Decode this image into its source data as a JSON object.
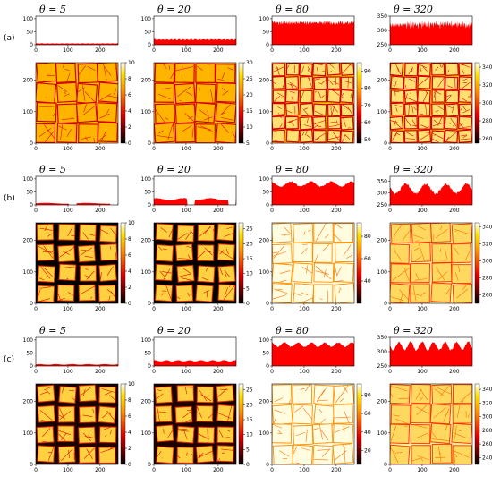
{
  "figure": {
    "rows": [
      {
        "label": "(a)",
        "panels": [
          {
            "title": "θ = 5",
            "prof_ylim": [
              0,
              110
            ],
            "prof_yticks": [
              0,
              50,
              100
            ],
            "level": 5,
            "amp": 1,
            "freq": 8,
            "cbar_ticks": [
              0,
              2,
              4,
              6,
              8,
              10
            ],
            "cbar_range": [
              0,
              10
            ],
            "style": "a"
          },
          {
            "title": "θ = 20",
            "prof_ylim": [
              0,
              110
            ],
            "prof_yticks": [
              0,
              50,
              100
            ],
            "level": 20,
            "amp": 3,
            "freq": 10,
            "cbar_ticks": [
              5,
              10,
              15,
              20,
              25,
              30
            ],
            "cbar_range": [
              5,
              30
            ],
            "style": "a"
          },
          {
            "title": "θ = 80",
            "prof_ylim": [
              0,
              110
            ],
            "prof_yticks": [
              0,
              50,
              100
            ],
            "level": 85,
            "amp": 10,
            "freq": 22,
            "cbar_ticks": [
              50,
              60,
              70,
              80,
              90
            ],
            "cbar_range": [
              48,
              95
            ],
            "style": "a"
          },
          {
            "title": "θ = 320",
            "prof_ylim": [
              250,
              350
            ],
            "prof_yticks": [
              250,
              300,
              350
            ],
            "level": 320,
            "amp": 18,
            "freq": 24,
            "cbar_ticks": [
              260,
              280,
              300,
              320,
              340
            ],
            "cbar_range": [
              255,
              345
            ],
            "style": "a"
          }
        ]
      },
      {
        "label": "(b)",
        "panels": [
          {
            "title": "θ = 5",
            "prof_ylim": [
              0,
              110
            ],
            "prof_yticks": [
              0,
              50,
              100
            ],
            "level": 6,
            "amp": 2,
            "freq": 2,
            "cbar_ticks": [
              0,
              2,
              4,
              6,
              8,
              10
            ],
            "cbar_range": [
              0,
              10
            ],
            "style": "b"
          },
          {
            "title": "θ = 20",
            "prof_ylim": [
              0,
              110
            ],
            "prof_yticks": [
              0,
              50,
              100
            ],
            "level": 22,
            "amp": 5,
            "freq": 3,
            "cbar_ticks": [
              0,
              5,
              10,
              15,
              20,
              25
            ],
            "cbar_range": [
              0,
              27
            ],
            "style": "b"
          },
          {
            "title": "θ = 80",
            "prof_ylim": [
              0,
              110
            ],
            "prof_yticks": [
              0,
              50,
              100
            ],
            "level": 80,
            "amp": 12,
            "freq": 4,
            "cbar_ticks": [
              40,
              60,
              80
            ],
            "cbar_range": [
              20,
              92
            ],
            "style": "b"
          },
          {
            "title": "θ = 320",
            "prof_ylim": [
              250,
              370
            ],
            "prof_yticks": [
              250,
              300,
              350
            ],
            "level": 318,
            "amp": 25,
            "freq": 4,
            "cbar_ticks": [
              260,
              280,
              300,
              320,
              340
            ],
            "cbar_range": [
              250,
              345
            ],
            "style": "b"
          }
        ]
      },
      {
        "label": "(c)",
        "panels": [
          {
            "title": "θ = 5",
            "prof_ylim": [
              0,
              110
            ],
            "prof_yticks": [
              0,
              50,
              100
            ],
            "level": 6,
            "amp": 1.5,
            "freq": 5,
            "cbar_ticks": [
              0,
              2,
              4,
              6,
              8,
              10
            ],
            "cbar_range": [
              0,
              10
            ],
            "style": "c"
          },
          {
            "title": "θ = 20",
            "prof_ylim": [
              0,
              110
            ],
            "prof_yticks": [
              0,
              50,
              100
            ],
            "level": 20,
            "amp": 3,
            "freq": 7,
            "cbar_ticks": [
              0,
              5,
              10,
              15,
              20,
              25
            ],
            "cbar_range": [
              0,
              27
            ],
            "style": "c"
          },
          {
            "title": "θ = 80",
            "prof_ylim": [
              0,
              110
            ],
            "prof_yticks": [
              0,
              50,
              100
            ],
            "level": 82,
            "amp": 10,
            "freq": 6,
            "cbar_ticks": [
              20,
              40,
              60,
              80
            ],
            "cbar_range": [
              5,
              92
            ],
            "style": "c"
          },
          {
            "title": "θ = 320",
            "prof_ylim": [
              250,
              350
            ],
            "prof_yticks": [
              250,
              300,
              350
            ],
            "level": 320,
            "amp": 18,
            "freq": 7,
            "cbar_ticks": [
              240,
              260,
              280,
              300,
              320,
              340
            ],
            "cbar_range": [
              230,
              348
            ],
            "style": "c"
          }
        ]
      }
    ]
  },
  "chart_data": {
    "type": "area",
    "x_ticks": [
      0,
      100,
      200
    ],
    "map_y_ticks": [
      0,
      100,
      200
    ],
    "x_range": [
      0,
      256
    ],
    "colors": {
      "profile_fill": "#ff0000",
      "map_dark": "#000000",
      "map_mid": "#ff2000",
      "map_light": "#ffffff"
    }
  }
}
